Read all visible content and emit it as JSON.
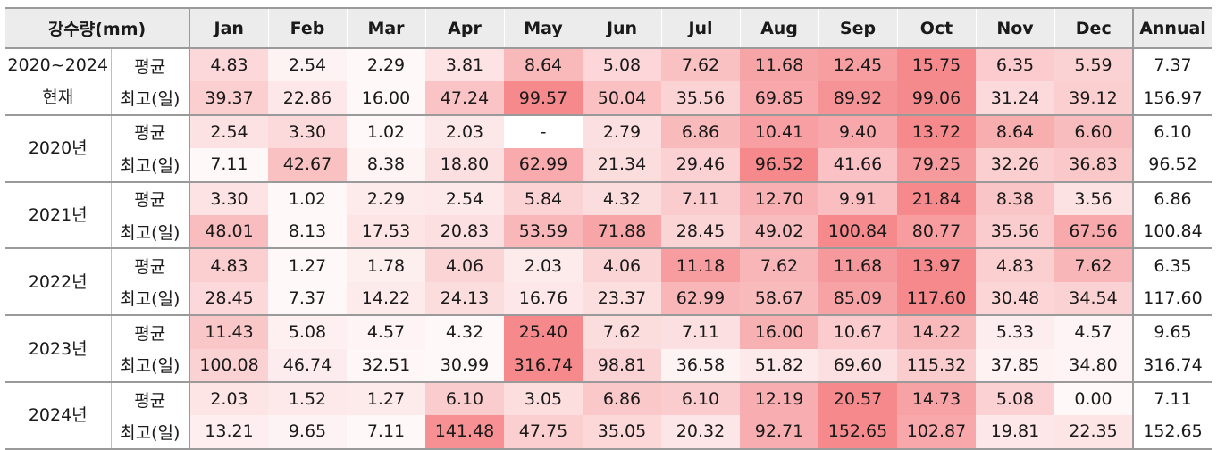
{
  "header": {
    "title": "강수량(mm)",
    "months": [
      "Jan",
      "Feb",
      "Mar",
      "Apr",
      "May",
      "Jun",
      "Jul",
      "Aug",
      "Sep",
      "Oct",
      "Nov",
      "Dec"
    ],
    "annual": "Annual"
  },
  "row_types": {
    "avg": "평균",
    "max": "최고(일)"
  },
  "heat_color": "#f47c80",
  "groups": [
    {
      "year_lines": [
        "2020~2024",
        "현재"
      ],
      "avg": {
        "values": [
          "4.83",
          "2.54",
          "2.29",
          "3.81",
          "8.64",
          "5.08",
          "7.62",
          "11.68",
          "12.45",
          "15.75",
          "6.35",
          "5.59"
        ],
        "annual": "7.37"
      },
      "max": {
        "values": [
          "39.37",
          "22.86",
          "16.00",
          "47.24",
          "99.57",
          "50.04",
          "35.56",
          "69.85",
          "89.92",
          "99.06",
          "31.24",
          "39.12"
        ],
        "annual": "156.97"
      }
    },
    {
      "year_lines": [
        "2020년"
      ],
      "avg": {
        "values": [
          "2.54",
          "3.30",
          "1.02",
          "2.03",
          "-",
          "2.79",
          "6.86",
          "10.41",
          "9.40",
          "13.72",
          "8.64",
          "6.60"
        ],
        "annual": "6.10"
      },
      "max": {
        "values": [
          "7.11",
          "42.67",
          "8.38",
          "18.80",
          "62.99",
          "21.34",
          "29.46",
          "96.52",
          "41.66",
          "79.25",
          "32.26",
          "36.83"
        ],
        "annual": "96.52"
      }
    },
    {
      "year_lines": [
        "2021년"
      ],
      "avg": {
        "values": [
          "3.30",
          "1.02",
          "2.29",
          "2.54",
          "5.84",
          "4.32",
          "7.11",
          "12.70",
          "9.91",
          "21.84",
          "8.38",
          "3.56"
        ],
        "annual": "6.86"
      },
      "max": {
        "values": [
          "48.01",
          "8.13",
          "17.53",
          "20.83",
          "53.59",
          "71.88",
          "28.45",
          "49.02",
          "100.84",
          "80.77",
          "35.56",
          "67.56"
        ],
        "annual": "100.84"
      }
    },
    {
      "year_lines": [
        "2022년"
      ],
      "avg": {
        "values": [
          "4.83",
          "1.27",
          "1.78",
          "4.06",
          "2.03",
          "4.06",
          "11.18",
          "7.62",
          "11.68",
          "13.97",
          "4.83",
          "7.62"
        ],
        "annual": "6.35"
      },
      "max": {
        "values": [
          "28.45",
          "7.37",
          "14.22",
          "24.13",
          "16.76",
          "23.37",
          "62.99",
          "58.67",
          "85.09",
          "117.60",
          "30.48",
          "34.54"
        ],
        "annual": "117.60"
      }
    },
    {
      "year_lines": [
        "2023년"
      ],
      "avg": {
        "values": [
          "11.43",
          "5.08",
          "4.57",
          "4.32",
          "25.40",
          "7.62",
          "7.11",
          "16.00",
          "10.67",
          "14.22",
          "5.33",
          "4.57"
        ],
        "annual": "9.65"
      },
      "max": {
        "values": [
          "100.08",
          "46.74",
          "32.51",
          "30.99",
          "316.74",
          "98.81",
          "36.58",
          "51.82",
          "69.60",
          "115.32",
          "37.85",
          "34.80"
        ],
        "annual": "316.74"
      }
    },
    {
      "year_lines": [
        "2024년"
      ],
      "avg": {
        "values": [
          "2.03",
          "1.52",
          "1.27",
          "6.10",
          "3.05",
          "6.86",
          "6.10",
          "12.19",
          "20.57",
          "14.73",
          "5.08",
          "0.00"
        ],
        "annual": "7.11"
      },
      "max": {
        "values": [
          "13.21",
          "9.65",
          "7.11",
          "141.48",
          "47.75",
          "35.05",
          "20.32",
          "92.71",
          "152.65",
          "102.87",
          "19.81",
          "22.35"
        ],
        "annual": "152.65"
      }
    }
  ]
}
